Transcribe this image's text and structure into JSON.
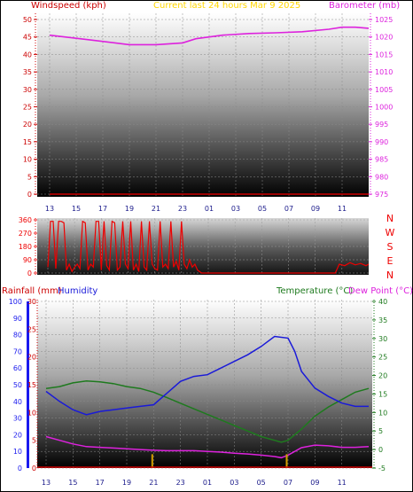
{
  "colors": {
    "windspeed": "#cc0000",
    "barometer": "#dd22dd",
    "direction": "#ee0000",
    "rainfall": "#cc0000",
    "humidity": "#1a1ad8",
    "temperature": "#1e7a1e",
    "dew_point": "#dd22dd",
    "left_axis_blue": "#1a1aee",
    "tick_label": "#000000",
    "title": "#ffd700"
  },
  "chart_data": [
    {
      "type": "line",
      "title": "Current last 24 hours Mar 9 2025",
      "left_axis_label": "Windspeed (kph)",
      "right_axis_label": "Barometer (mb)",
      "x_ticks": [
        "13",
        "15",
        "17",
        "19",
        "21",
        "23",
        "01",
        "03",
        "05",
        "07",
        "09",
        "11"
      ],
      "left_ticks": [
        "0",
        "5",
        "10",
        "15",
        "20",
        "25",
        "30",
        "35",
        "40",
        "45",
        "50"
      ],
      "right_ticks": [
        "975",
        "980",
        "985",
        "990",
        "995",
        "1000",
        "1005",
        "1010",
        "1015",
        "1020",
        "1025"
      ],
      "ylim_left": [
        0,
        50
      ],
      "ylim_right": [
        975,
        1025
      ],
      "series": [
        {
          "name": "Barometer (mb)",
          "axis": "right",
          "x": [
            0,
            3,
            6,
            8,
            10,
            11,
            13,
            15,
            17,
            19,
            21,
            22,
            23,
            24
          ],
          "values": [
            1020.5,
            1019.2,
            1017.8,
            1017.8,
            1018.3,
            1019.5,
            1020.5,
            1021.0,
            1021.2,
            1021.5,
            1022.2,
            1022.8,
            1022.8,
            1022.5
          ]
        },
        {
          "name": "Windspeed (kph)",
          "axis": "left",
          "x": [
            0,
            24
          ],
          "values": [
            0,
            0
          ]
        }
      ]
    },
    {
      "type": "line",
      "y_ticks": [
        "360",
        "270",
        "180",
        "90",
        "0"
      ],
      "direction_labels": [
        "N",
        "W",
        "S",
        "E",
        "N"
      ],
      "ylim": [
        0,
        360
      ],
      "series": [
        {
          "name": "Wind direction",
          "values_desc": "erratic",
          "x": [
            0.0,
            0.2,
            0.4,
            0.6,
            0.8,
            1.0,
            1.2,
            1.4,
            1.6,
            1.8,
            2.0,
            2.2,
            2.4,
            2.6,
            2.8,
            3.0,
            3.2,
            3.4,
            3.6,
            3.8,
            4.0,
            4.2,
            4.4,
            4.6,
            4.8,
            5.0,
            5.2,
            5.4,
            5.6,
            5.8,
            6.0,
            6.2,
            6.4,
            6.6,
            6.8,
            7.0,
            7.2,
            7.4,
            7.6,
            7.8,
            8.0,
            8.2,
            8.4,
            8.6,
            8.8,
            9.0,
            9.2,
            9.4,
            9.6,
            9.8,
            10.0,
            10.2,
            10.4,
            10.6,
            10.8,
            11.0,
            11.2,
            11.5,
            12,
            14,
            16,
            18,
            20,
            21.5,
            21.8,
            22.2,
            22.6,
            23.0,
            23.4,
            23.8,
            24.0
          ],
          "values": [
            40,
            350,
            350,
            30,
            350,
            350,
            340,
            20,
            60,
            10,
            40,
            60,
            30,
            350,
            340,
            20,
            60,
            40,
            350,
            350,
            20,
            350,
            50,
            20,
            350,
            340,
            20,
            40,
            350,
            60,
            30,
            350,
            20,
            60,
            10,
            350,
            40,
            20,
            350,
            60,
            30,
            20,
            350,
            40,
            60,
            30,
            350,
            40,
            80,
            20,
            350,
            60,
            30,
            90,
            40,
            60,
            20,
            0,
            0,
            0,
            0,
            0,
            0,
            0,
            60,
            50,
            70,
            55,
            65,
            50,
            60
          ]
        }
      ]
    },
    {
      "type": "line",
      "left_axis_label": "Rainfall (mm)",
      "humidity_label": "Humidity",
      "right_axis_label_temp": "Temperature (°C)",
      "right_axis_label_dew": "Dew Point (°C)",
      "x_ticks": [
        "13",
        "15",
        "17",
        "19",
        "21",
        "23",
        "01",
        "03",
        "05",
        "07",
        "09",
        "11"
      ],
      "humidity_ticks": [
        "0",
        "10",
        "20",
        "30",
        "40",
        "50",
        "60",
        "70",
        "80",
        "90",
        "100"
      ],
      "rainfall_ticks": [
        "0",
        "5",
        "10",
        "15",
        "20",
        "25",
        "30"
      ],
      "temp_ticks": [
        "-5",
        "0",
        "5",
        "10",
        "15",
        "20",
        "25",
        "30",
        "35",
        "40"
      ],
      "ylim_humidity": [
        0,
        100
      ],
      "ylim_rainfall": [
        0,
        30
      ],
      "ylim_temp": [
        -5,
        40
      ],
      "series": [
        {
          "name": "Humidity",
          "axis": "humidity",
          "x": [
            0,
            1,
            2,
            3,
            4,
            5,
            6,
            7,
            8,
            9,
            10,
            11,
            12,
            13,
            14,
            15,
            16,
            17,
            18,
            18.5,
            19,
            20,
            21,
            22,
            23,
            24
          ],
          "values": [
            46,
            40,
            35,
            32,
            34,
            35,
            36,
            37,
            38,
            45,
            52,
            55,
            56,
            60,
            64,
            68,
            73,
            79,
            78,
            70,
            58,
            48,
            43,
            39,
            37,
            37
          ]
        },
        {
          "name": "Temperature (°C)",
          "axis": "temp",
          "x": [
            0,
            1,
            2,
            3,
            4,
            5,
            6,
            7,
            8,
            9,
            10,
            11,
            12,
            13,
            14,
            15,
            16,
            17,
            17.5,
            18,
            19,
            20,
            21,
            22,
            23,
            24
          ],
          "values": [
            16.5,
            17,
            18,
            18.5,
            18.3,
            17.8,
            17,
            16.5,
            15.5,
            14,
            12.5,
            11,
            9.5,
            8,
            6.5,
            5,
            3.5,
            2.5,
            2,
            2.5,
            5.5,
            9,
            11.5,
            13.5,
            15.5,
            16.5
          ]
        },
        {
          "name": "Dew Point (°C)",
          "axis": "temp",
          "x": [
            0,
            1,
            2,
            3,
            4,
            5,
            6,
            7,
            8,
            9,
            10,
            11,
            12,
            13,
            14,
            15,
            16,
            17,
            17.5,
            18,
            19,
            20,
            21,
            22,
            23,
            24
          ],
          "values": [
            3.5,
            2.5,
            1.5,
            0.8,
            0.6,
            0.4,
            0.2,
            0.0,
            -0.2,
            -0.3,
            -0.3,
            -0.3,
            -0.5,
            -0.7,
            -1.0,
            -1.2,
            -1.5,
            -1.9,
            -2.2,
            -1.5,
            0.5,
            1.2,
            1.0,
            0.6,
            0.6,
            0.8
          ]
        },
        {
          "name": "Rainfall (mm)",
          "axis": "rainfall",
          "x": [
            7.9,
            17.9
          ],
          "values": [
            2.5,
            2.5
          ]
        }
      ]
    }
  ]
}
